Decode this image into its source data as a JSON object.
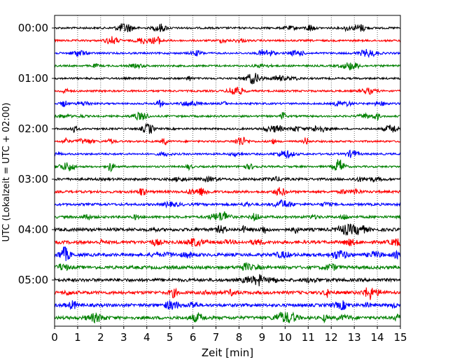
{
  "chart_data": {
    "type": "line",
    "title": "",
    "xlabel": "Zeit  [min]",
    "ylabel": "UTC (Lokalzeit = UTC + 02:00)",
    "xlim": [
      0,
      15
    ],
    "x_ticks": [
      "0",
      "1",
      "2",
      "3",
      "4",
      "5",
      "6",
      "7",
      "8",
      "9",
      "10",
      "11",
      "12",
      "13",
      "14",
      "15"
    ],
    "y_ticks": [
      {
        "label": "00:00",
        "trace": 0
      },
      {
        "label": "01:00",
        "trace": 4
      },
      {
        "label": "02:00",
        "trace": 8
      },
      {
        "label": "03:00",
        "trace": 12
      },
      {
        "label": "04:00",
        "trace": 16
      },
      {
        "label": "05:00",
        "trace": 20
      }
    ],
    "grid": "vertical dotted",
    "trace_minutes": 15,
    "trace_count": 24,
    "trace_colors": [
      "#000000",
      "#ff0000",
      "#0000ff",
      "#008000"
    ],
    "traces": [
      {
        "start": "00:00",
        "color": "#000000"
      },
      {
        "start": "00:15",
        "color": "#ff0000"
      },
      {
        "start": "00:30",
        "color": "#0000ff"
      },
      {
        "start": "00:45",
        "color": "#008000"
      },
      {
        "start": "01:00",
        "color": "#000000"
      },
      {
        "start": "01:15",
        "color": "#ff0000"
      },
      {
        "start": "01:30",
        "color": "#0000ff"
      },
      {
        "start": "01:45",
        "color": "#008000"
      },
      {
        "start": "02:00",
        "color": "#000000"
      },
      {
        "start": "02:15",
        "color": "#ff0000"
      },
      {
        "start": "02:30",
        "color": "#0000ff"
      },
      {
        "start": "02:45",
        "color": "#008000"
      },
      {
        "start": "03:00",
        "color": "#000000"
      },
      {
        "start": "03:15",
        "color": "#ff0000"
      },
      {
        "start": "03:30",
        "color": "#0000ff"
      },
      {
        "start": "03:45",
        "color": "#008000"
      },
      {
        "start": "04:00",
        "color": "#000000"
      },
      {
        "start": "04:15",
        "color": "#ff0000"
      },
      {
        "start": "04:30",
        "color": "#0000ff"
      },
      {
        "start": "04:45",
        "color": "#008000"
      },
      {
        "start": "05:00",
        "color": "#000000"
      },
      {
        "start": "05:15",
        "color": "#ff0000"
      },
      {
        "start": "05:30",
        "color": "#0000ff"
      },
      {
        "start": "05:45",
        "color": "#008000"
      }
    ]
  }
}
